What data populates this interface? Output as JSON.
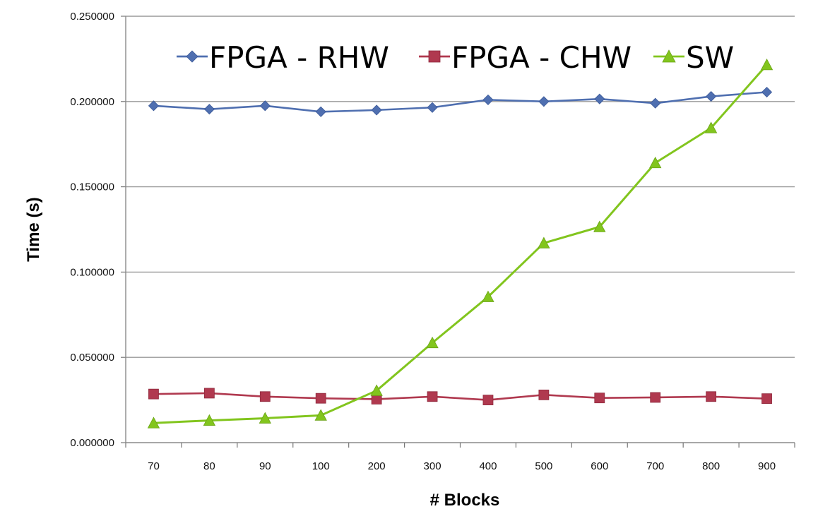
{
  "chart_data": {
    "type": "line",
    "title": "",
    "xlabel": "# Blocks",
    "ylabel": "Time (s)",
    "categories": [
      "70",
      "80",
      "90",
      "100",
      "200",
      "300",
      "400",
      "500",
      "600",
      "700",
      "800",
      "900"
    ],
    "ylim": [
      0,
      0.25
    ],
    "yticks": [
      "0.000000",
      "0.050000",
      "0.100000",
      "0.150000",
      "0.200000",
      "0.250000"
    ],
    "grid": "horizontal",
    "legend_position": "top",
    "series": [
      {
        "name": "FPGA - RHW",
        "color": "#4f6fb0",
        "marker": "diamond",
        "values": [
          0.1975,
          0.1955,
          0.1975,
          0.194,
          0.195,
          0.1965,
          0.201,
          0.2,
          0.2015,
          0.199,
          0.203,
          0.2055
        ]
      },
      {
        "name": "FPGA - CHW",
        "color": "#b0394f",
        "marker": "square",
        "values": [
          0.0285,
          0.029,
          0.027,
          0.026,
          0.0255,
          0.027,
          0.025,
          0.028,
          0.0262,
          0.0265,
          0.027,
          0.0258
        ]
      },
      {
        "name": "SW",
        "color": "#82c51e",
        "marker": "triangle",
        "values": [
          0.0115,
          0.013,
          0.0143,
          0.016,
          0.0305,
          0.0585,
          0.0855,
          0.117,
          0.1265,
          0.164,
          0.1845,
          0.2215
        ]
      }
    ]
  }
}
